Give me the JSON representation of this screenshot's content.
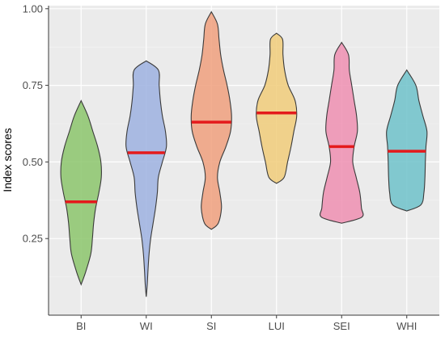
{
  "chart_data": {
    "type": "violin",
    "title": "",
    "xlabel": "",
    "ylabel": "Index scores",
    "ylim": [
      0.0,
      1.01
    ],
    "grid": true,
    "legend": "none",
    "yticks": [
      0.25,
      0.5,
      0.75,
      1.0
    ],
    "ytick_labels": [
      "0.25",
      "0.50",
      "0.75",
      "1.00"
    ],
    "categories": [
      "BI",
      "WI",
      "SI",
      "LUI",
      "SEI",
      "WHI"
    ],
    "series": [
      {
        "category": "BI",
        "color": "#8cc66c",
        "min": 0.1,
        "max": 0.7,
        "median": 0.37,
        "density": [
          [
            0.1,
            0.0
          ],
          [
            0.14,
            0.22
          ],
          [
            0.2,
            0.48
          ],
          [
            0.25,
            0.56
          ],
          [
            0.3,
            0.62
          ],
          [
            0.35,
            0.72
          ],
          [
            0.4,
            0.88
          ],
          [
            0.45,
            1.0
          ],
          [
            0.5,
            0.98
          ],
          [
            0.55,
            0.82
          ],
          [
            0.6,
            0.58
          ],
          [
            0.65,
            0.34
          ],
          [
            0.7,
            0.0
          ]
        ]
      },
      {
        "category": "WI",
        "color": "#9eb2e0",
        "min": 0.06,
        "max": 0.83,
        "median": 0.53,
        "density": [
          [
            0.06,
            0.0
          ],
          [
            0.1,
            0.05
          ],
          [
            0.15,
            0.09
          ],
          [
            0.2,
            0.14
          ],
          [
            0.25,
            0.22
          ],
          [
            0.3,
            0.34
          ],
          [
            0.35,
            0.46
          ],
          [
            0.4,
            0.55
          ],
          [
            0.45,
            0.6
          ],
          [
            0.5,
            0.8
          ],
          [
            0.55,
            1.0
          ],
          [
            0.6,
            0.95
          ],
          [
            0.65,
            0.8
          ],
          [
            0.7,
            0.7
          ],
          [
            0.75,
            0.64
          ],
          [
            0.8,
            0.6
          ],
          [
            0.83,
            0.0
          ]
        ]
      },
      {
        "category": "SI",
        "color": "#f0a07e",
        "min": 0.28,
        "max": 0.99,
        "median": 0.63,
        "density": [
          [
            0.28,
            0.0
          ],
          [
            0.3,
            0.34
          ],
          [
            0.35,
            0.5
          ],
          [
            0.4,
            0.42
          ],
          [
            0.45,
            0.3
          ],
          [
            0.5,
            0.42
          ],
          [
            0.55,
            0.72
          ],
          [
            0.6,
            0.95
          ],
          [
            0.65,
            1.0
          ],
          [
            0.7,
            0.92
          ],
          [
            0.75,
            0.78
          ],
          [
            0.8,
            0.6
          ],
          [
            0.85,
            0.46
          ],
          [
            0.9,
            0.38
          ],
          [
            0.95,
            0.3
          ],
          [
            0.99,
            0.0
          ]
        ]
      },
      {
        "category": "LUI",
        "color": "#f1cd7a",
        "min": 0.43,
        "max": 0.92,
        "median": 0.66,
        "density": [
          [
            0.43,
            0.0
          ],
          [
            0.45,
            0.38
          ],
          [
            0.5,
            0.55
          ],
          [
            0.55,
            0.72
          ],
          [
            0.6,
            0.86
          ],
          [
            0.65,
            1.0
          ],
          [
            0.7,
            0.92
          ],
          [
            0.75,
            0.58
          ],
          [
            0.8,
            0.4
          ],
          [
            0.85,
            0.32
          ],
          [
            0.9,
            0.3
          ],
          [
            0.92,
            0.0
          ]
        ]
      },
      {
        "category": "SEI",
        "color": "#ef8fb2",
        "min": 0.3,
        "max": 0.89,
        "median": 0.55,
        "density": [
          [
            0.3,
            0.0
          ],
          [
            0.32,
            1.0
          ],
          [
            0.35,
            0.98
          ],
          [
            0.4,
            0.9
          ],
          [
            0.45,
            0.72
          ],
          [
            0.5,
            0.55
          ],
          [
            0.55,
            0.62
          ],
          [
            0.6,
            0.78
          ],
          [
            0.65,
            0.74
          ],
          [
            0.7,
            0.62
          ],
          [
            0.75,
            0.5
          ],
          [
            0.8,
            0.38
          ],
          [
            0.85,
            0.34
          ],
          [
            0.89,
            0.0
          ]
        ]
      },
      {
        "category": "WHI",
        "color": "#6fc2ca",
        "min": 0.34,
        "max": 0.8,
        "median": 0.535,
        "density": [
          [
            0.34,
            0.0
          ],
          [
            0.36,
            0.7
          ],
          [
            0.4,
            0.85
          ],
          [
            0.45,
            0.9
          ],
          [
            0.5,
            0.92
          ],
          [
            0.55,
            0.95
          ],
          [
            0.6,
            1.0
          ],
          [
            0.65,
            0.8
          ],
          [
            0.7,
            0.6
          ],
          [
            0.75,
            0.45
          ],
          [
            0.8,
            0.0
          ]
        ]
      }
    ]
  },
  "colors": {
    "panel_background": "#ebebeb",
    "grid_major": "#ffffff",
    "grid_minor": "#f4f4f4",
    "outline": "#3a3a3a",
    "median": "#e41a1c"
  }
}
